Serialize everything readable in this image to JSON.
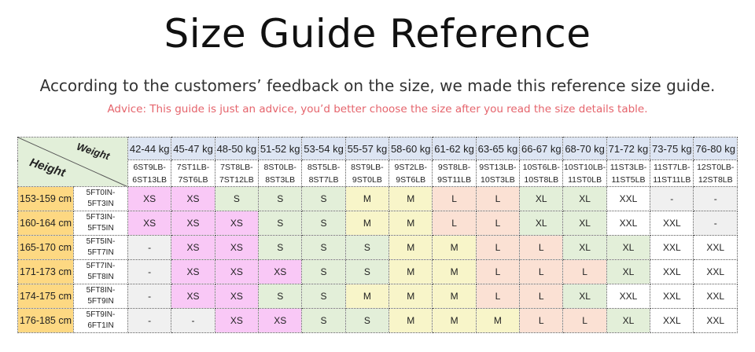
{
  "title": "Size Guide Reference",
  "subtitle": "According to the customers’ feedback on the size, we made this reference size guide.",
  "advice": "Advice: This guide is just an advice, you’d better choose the size after you read the size details table.",
  "corner": {
    "weight_label": "Weight",
    "height_label": "Height"
  },
  "weights": [
    {
      "kg": "42-44 kg",
      "st": [
        "6ST9LB-",
        "6ST13LB"
      ]
    },
    {
      "kg": "45-47 kg",
      "st": [
        "7ST1LB-",
        "7ST6LB"
      ]
    },
    {
      "kg": "48-50 kg",
      "st": [
        "7ST8LB-",
        "7ST12LB"
      ]
    },
    {
      "kg": "51-52 kg",
      "st": [
        "8ST0LB-",
        "8ST3LB"
      ]
    },
    {
      "kg": "53-54 kg",
      "st": [
        "8ST5LB-",
        "8ST7LB"
      ]
    },
    {
      "kg": "55-57 kg",
      "st": [
        "8ST9LB-",
        "9ST0LB"
      ]
    },
    {
      "kg": "58-60 kg",
      "st": [
        "9ST2LB-",
        "9ST6LB"
      ]
    },
    {
      "kg": "61-62 kg",
      "st": [
        "9ST8LB-",
        "9ST11LB"
      ]
    },
    {
      "kg": "63-65 kg",
      "st": [
        "9ST13LB-",
        "10ST3LB"
      ]
    },
    {
      "kg": "66-67 kg",
      "st": [
        "10ST6LB-",
        "10ST8LB"
      ]
    },
    {
      "kg": "68-70 kg",
      "st": [
        "10ST10LB-",
        "11ST0LB"
      ]
    },
    {
      "kg": "71-72 kg",
      "st": [
        "11ST3LB-",
        "11ST5LB"
      ]
    },
    {
      "kg": "73-75 kg",
      "st": [
        "11ST7LB-",
        "11ST11LB"
      ]
    },
    {
      "kg": "76-80 kg",
      "st": [
        "12ST0LB-",
        "12ST8LB"
      ]
    }
  ],
  "rows": [
    {
      "cm": "153-159 cm",
      "ft": [
        "5FT0IN-",
        "5FT3IN"
      ],
      "sizes": [
        "XS",
        "XS",
        "S",
        "S",
        "S",
        "M",
        "M",
        "L",
        "L",
        "XL",
        "XL",
        "XXL",
        "-",
        "-"
      ]
    },
    {
      "cm": "160-164 cm",
      "ft": [
        "5FT3IN-",
        "5FT5IN"
      ],
      "sizes": [
        "XS",
        "XS",
        "XS",
        "S",
        "S",
        "M",
        "M",
        "L",
        "L",
        "XL",
        "XL",
        "XXL",
        "XXL",
        "-"
      ]
    },
    {
      "cm": "165-170 cm",
      "ft": [
        "5FT5IN-",
        "5FT7IN"
      ],
      "sizes": [
        "-",
        "XS",
        "XS",
        "S",
        "S",
        "S",
        "M",
        "M",
        "L",
        "L",
        "XL",
        "XL",
        "XXL",
        "XXL"
      ]
    },
    {
      "cm": "171-173 cm",
      "ft": [
        "5FT7IN-",
        "5FT8IN"
      ],
      "sizes": [
        "-",
        "XS",
        "XS",
        "XS",
        "S",
        "S",
        "M",
        "M",
        "L",
        "L",
        "L",
        "XL",
        "XXL",
        "XXL"
      ]
    },
    {
      "cm": "174-175 cm",
      "ft": [
        "5FT8IN-",
        "5FT9IN"
      ],
      "sizes": [
        "-",
        "XS",
        "XS",
        "S",
        "S",
        "M",
        "M",
        "M",
        "L",
        "L",
        "XL",
        "XXL",
        "XXL",
        "XXL"
      ]
    },
    {
      "cm": "176-185 cm",
      "ft": [
        "5FT9IN-",
        "6FT1IN"
      ],
      "sizes": [
        "-",
        "-",
        "XS",
        "XS",
        "S",
        "S",
        "M",
        "M",
        "M",
        "L",
        "L",
        "XL",
        "XXL",
        "XXL"
      ]
    }
  ],
  "colors": {
    "XS": "#f9c8f6",
    "S": "#e3efd9",
    "M": "#f8f5c9",
    "L": "#fbe1d4",
    "XL": "#e3efd9",
    "XXL": "#ffffff",
    "-": "#f0f0f0",
    "height_col": "#fdd882",
    "weight_header": "#dde5f3",
    "advice": "#e5646c"
  }
}
